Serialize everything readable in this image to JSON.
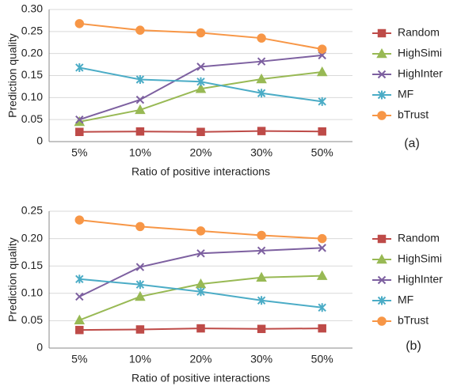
{
  "chart_data": [
    {
      "type": "line",
      "y_label": "Prediction quality",
      "x_label": "Ratio of positive interactions",
      "panel_label": "(a)",
      "categories": [
        "5%",
        "10%",
        "20%",
        "30%",
        "50%"
      ],
      "ylim": [
        0,
        0.3
      ],
      "yticks": [
        0,
        0.05,
        {
          "value": 0.1,
          "label": "0.10"
        },
        0.15,
        {
          "value": 0.2,
          "label": "0.20"
        },
        0.25,
        {
          "value": 0.3,
          "label": "0.30"
        }
      ],
      "grid": true,
      "series": [
        {
          "name": "Random",
          "color": "#be4b48",
          "marker": "square",
          "values": [
            0.022,
            0.023,
            0.022,
            0.024,
            0.023
          ]
        },
        {
          "name": "HighSimi",
          "color": "#98b954",
          "marker": "triangle",
          "values": [
            0.045,
            0.072,
            0.12,
            0.142,
            0.158
          ]
        },
        {
          "name": "HighInter",
          "color": "#7d60a0",
          "marker": "x",
          "values": [
            0.05,
            0.095,
            0.17,
            0.182,
            0.196
          ]
        },
        {
          "name": "MF",
          "color": "#4bacc6",
          "marker": "star",
          "values": [
            0.168,
            0.141,
            0.136,
            0.11,
            0.091
          ]
        },
        {
          "name": "bTrust",
          "color": "#f79646",
          "marker": "circle",
          "values": [
            0.268,
            0.253,
            0.247,
            0.235,
            0.21
          ]
        }
      ]
    },
    {
      "type": "line",
      "y_label": "Prediction quality",
      "x_label": "Ratio of positive interactions",
      "panel_label": "(b)",
      "categories": [
        "5%",
        "10%",
        "20%",
        "30%",
        "50%"
      ],
      "ylim": [
        0,
        0.25
      ],
      "yticks": [
        0,
        0.05,
        {
          "value": 0.1,
          "label": "0.10"
        },
        0.15,
        {
          "value": 0.2,
          "label": "0.20"
        },
        0.25
      ],
      "grid": true,
      "series": [
        {
          "name": "Random",
          "color": "#be4b48",
          "marker": "square",
          "values": [
            0.033,
            0.034,
            0.036,
            0.035,
            0.036
          ]
        },
        {
          "name": "HighSimi",
          "color": "#98b954",
          "marker": "triangle",
          "values": [
            0.051,
            0.094,
            0.117,
            0.129,
            0.132
          ]
        },
        {
          "name": "HighInter",
          "color": "#7d60a0",
          "marker": "x",
          "values": [
            0.094,
            0.148,
            0.173,
            0.178,
            0.183
          ]
        },
        {
          "name": "MF",
          "color": "#4bacc6",
          "marker": "star",
          "values": [
            0.126,
            0.116,
            0.103,
            0.087,
            0.074
          ]
        },
        {
          "name": "bTrust",
          "color": "#f79646",
          "marker": "circle",
          "values": [
            0.234,
            0.222,
            0.214,
            0.206,
            0.2
          ]
        }
      ]
    }
  ]
}
